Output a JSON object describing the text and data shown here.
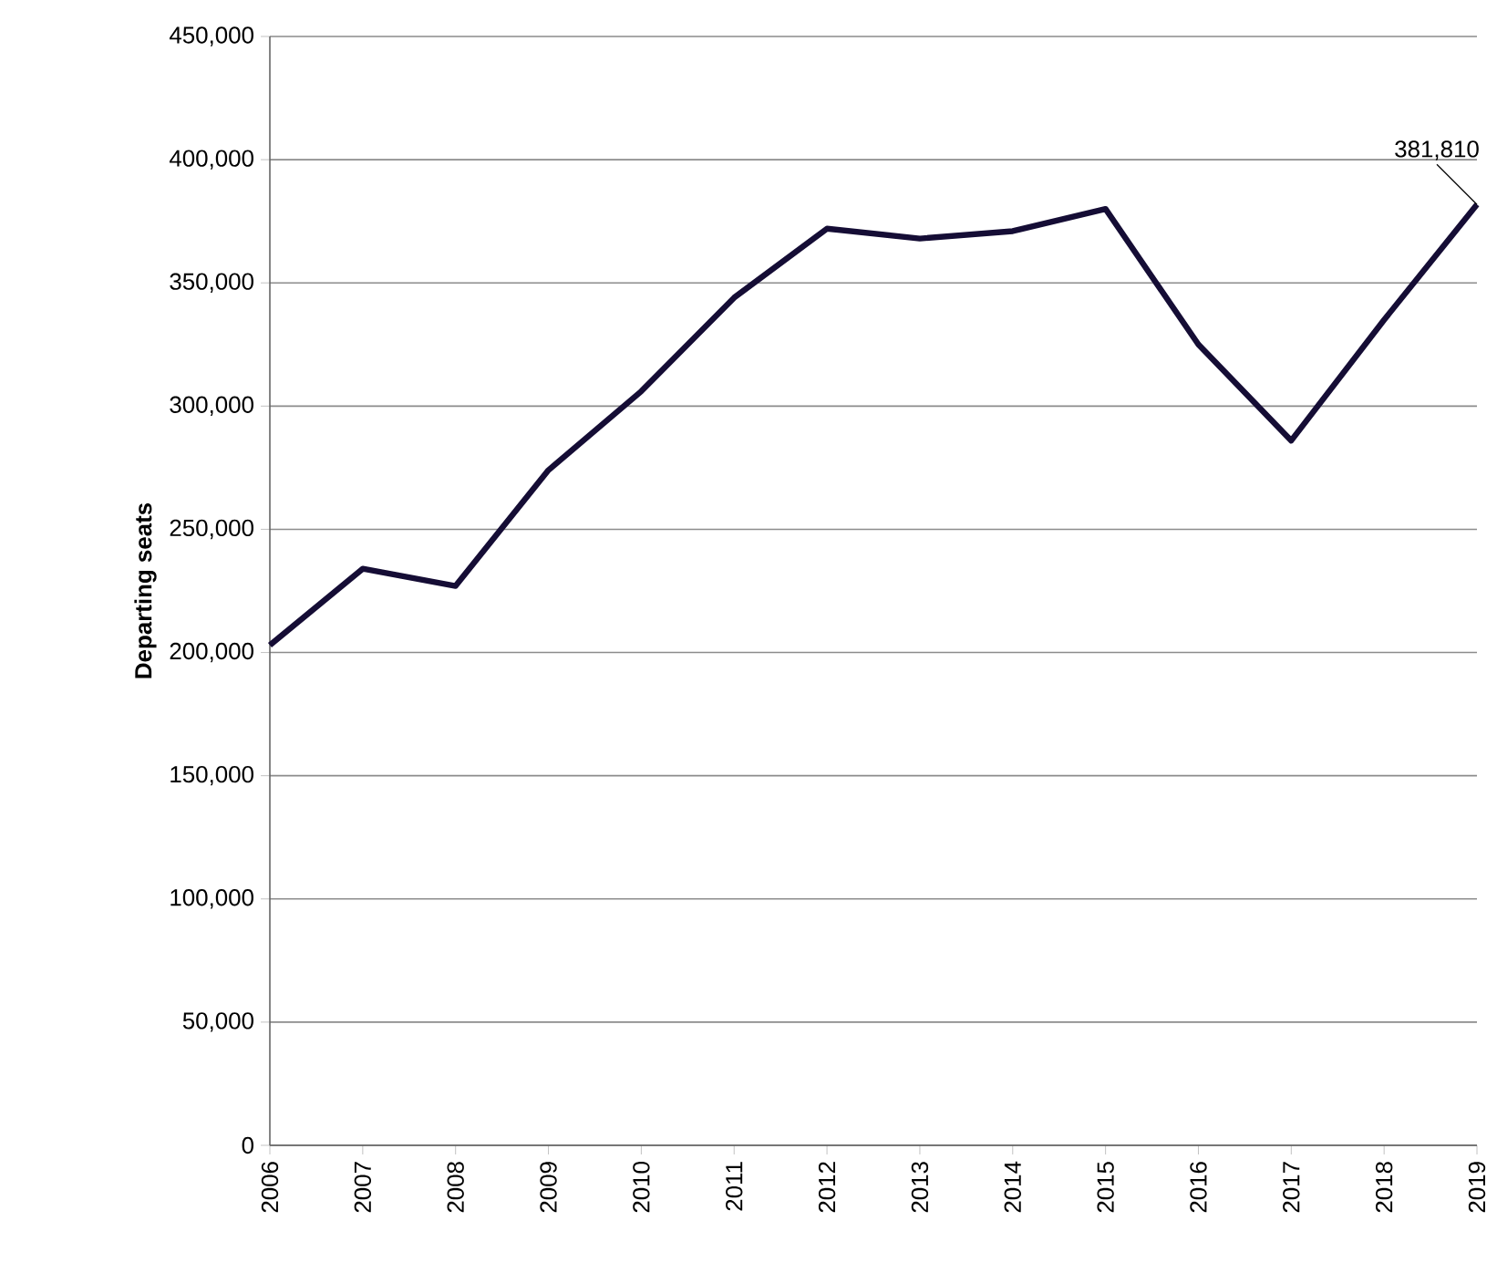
{
  "chart_data": {
    "type": "line",
    "ylabel": "Departing seats",
    "x": [
      2006,
      2007,
      2008,
      2009,
      2010,
      2011,
      2012,
      2013,
      2014,
      2015,
      2016,
      2017,
      2018,
      2019
    ],
    "series": [
      {
        "color": "#150d35",
        "values": [
          203000,
          234000,
          227000,
          274000,
          306000,
          344000,
          372000,
          368000,
          371000,
          380000,
          325000,
          286000,
          335000,
          381810
        ]
      }
    ],
    "xlim": [
      2006,
      2019
    ],
    "xticks": [
      2006,
      2007,
      2008,
      2009,
      2010,
      2011,
      2012,
      2013,
      2014,
      2015,
      2016,
      2017,
      2018,
      2019
    ],
    "ylim": [
      0,
      450000
    ],
    "yticks": [
      0,
      {
        "value": 50000,
        "label": "50,000"
      },
      {
        "value": 100000,
        "label": "100,000"
      },
      {
        "value": 150000,
        "label": "150,000"
      },
      {
        "value": 200000,
        "label": "200,000"
      },
      {
        "value": 250000,
        "label": "250,000"
      },
      {
        "value": 300000,
        "label": "300,000"
      },
      {
        "value": 350000,
        "label": "350,000"
      },
      {
        "value": 400000,
        "label": "400,000"
      },
      {
        "value": 450000,
        "label": "450,000"
      }
    ],
    "grid": "y",
    "marker": "none",
    "line_style": "solid",
    "annotations": [
      {
        "text": "381,810",
        "x": 2019,
        "y": 381810
      }
    ]
  }
}
